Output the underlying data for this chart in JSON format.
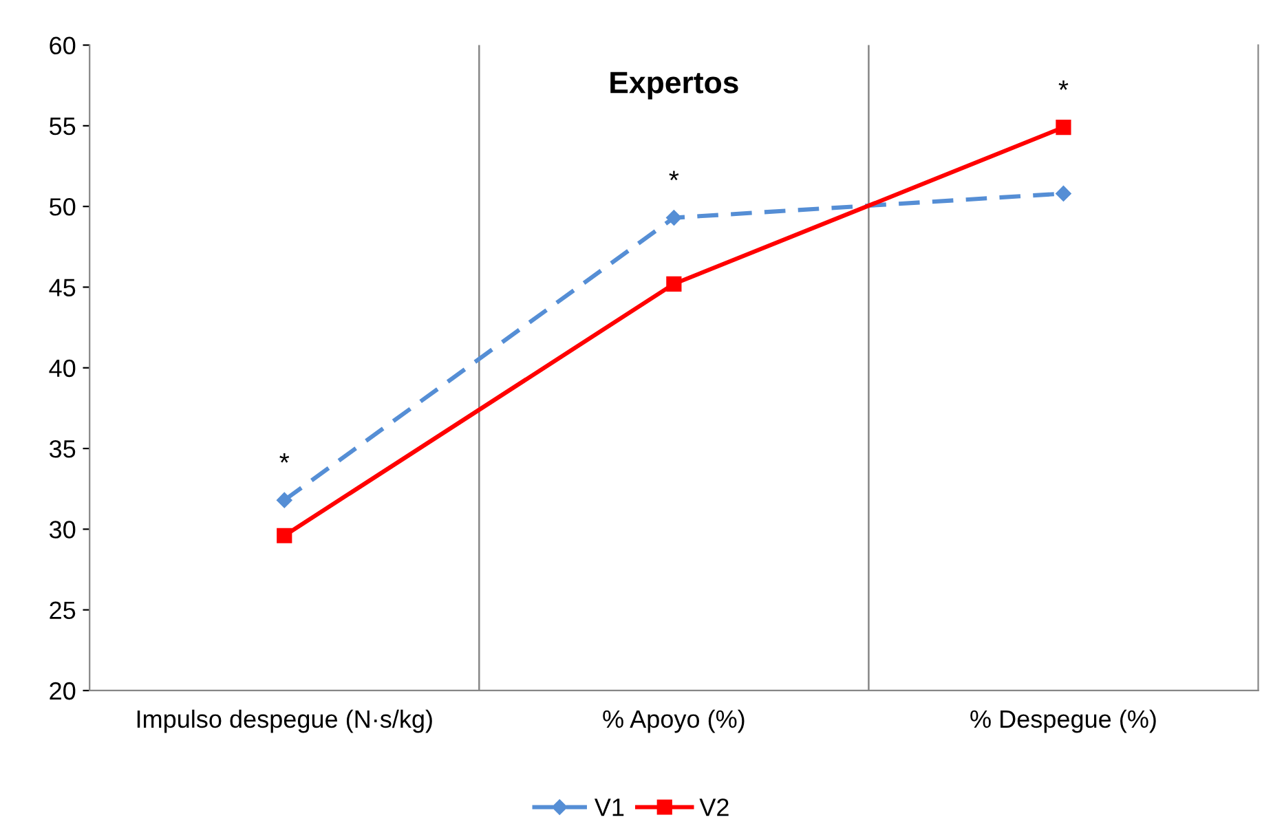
{
  "chart_data": {
    "type": "line",
    "title": "Expertos",
    "categories": [
      "Impulso despegue (N·s/kg)",
      "% Apoyo (%)",
      "% Despegue (%)"
    ],
    "series": [
      {
        "name": "V1",
        "color": "#558ed5",
        "values": [
          31.8,
          49.3,
          50.8
        ],
        "marker": "diamond",
        "line_style": "dashed"
      },
      {
        "name": "V2",
        "color": "#ff0000",
        "values": [
          29.6,
          45.2,
          54.9
        ],
        "marker": "square",
        "line_style": "solid"
      }
    ],
    "ylim": [
      20,
      60
    ],
    "yticks": [
      20,
      25,
      30,
      35,
      40,
      45,
      50,
      55,
      60
    ],
    "grid": "x",
    "legend": "bottom",
    "annotations": [
      {
        "text": "*",
        "x": "Impulso despegue (N·s/kg)",
        "y": 31.8
      },
      {
        "text": "*",
        "x": "% Apoyo (%)",
        "y": 49.3
      },
      {
        "text": "*",
        "x": "% Despegue (%)",
        "y": 54.9
      }
    ]
  }
}
